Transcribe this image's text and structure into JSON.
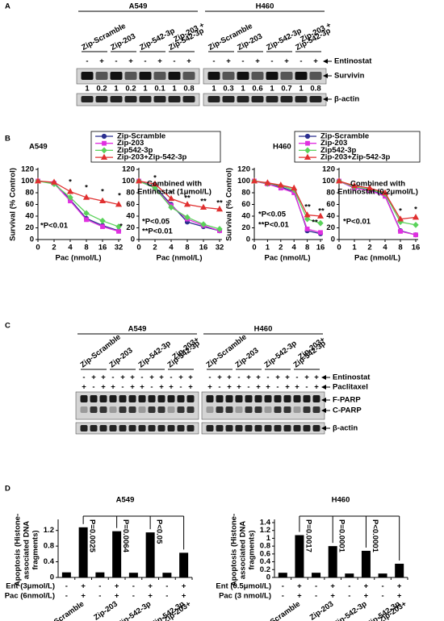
{
  "figure": {
    "panel_a": {
      "label": "A",
      "cell_lines": [
        "A549",
        "H460"
      ],
      "constructs": [
        [
          "Zip-Scramble"
        ],
        [
          "Zip-203"
        ],
        [
          "Zip-542-3p"
        ],
        [
          "Zip-203 +",
          "Zip-542-3p"
        ]
      ],
      "treatment": "Entinostat",
      "entinostat": [
        "-",
        "+"
      ],
      "proteins": [
        "Survivin",
        "β-actin"
      ],
      "survivin": [
        [
          1,
          0.2,
          1,
          0.2,
          1,
          0.1,
          1,
          0.8
        ],
        [
          1,
          0.3,
          1,
          0.6,
          1,
          0.7,
          1,
          0.8
        ]
      ]
    },
    "panel_c": {
      "label": "C",
      "cell_lines": [
        "A549",
        "H460"
      ],
      "constructs": [
        [
          "Zip-Scramble"
        ],
        [
          "Zip-203"
        ],
        [
          "Zip-542-3p"
        ],
        [
          "Zip-203+",
          "Zip-542-3p"
        ]
      ],
      "treatments": [
        "Entinostat",
        "Paclitaxel"
      ],
      "entinostat": [
        "-",
        "+",
        "+"
      ],
      "paclitaxel": [
        "+",
        "-",
        "+"
      ],
      "proteins": [
        "F-PARP",
        "C-PARP",
        "β-actin"
      ]
    }
  },
  "chart_data": [
    {
      "type": "line",
      "panel_label": "B",
      "title": "A549",
      "y_label": "Survival (% Control)",
      "x_label": "Pac (nmol/L)",
      "categories": [
        "0",
        "2",
        "4",
        "8",
        "16",
        "32"
      ],
      "ylim": [
        0,
        120
      ],
      "yticks": [
        0,
        20,
        40,
        60,
        80,
        100,
        120
      ],
      "series": [
        {
          "name": "Zip-Scramble",
          "color": "#2b2f8f",
          "values": [
            100,
            97,
            68,
            36,
            24,
            15
          ]
        },
        {
          "name": "Zip-203",
          "color": "#e030e0",
          "values": [
            100,
            96,
            66,
            34,
            22,
            14
          ]
        },
        {
          "name": "Zip542-3p",
          "color": "#5ad25a",
          "values": [
            100,
            95,
            72,
            45,
            32,
            22
          ]
        },
        {
          "name": "Zip-203+Zip-542-3p",
          "color": "#e03030",
          "values": [
            100,
            98,
            82,
            72,
            66,
            60
          ]
        }
      ],
      "annotations": [
        "*",
        "*",
        "*",
        "*",
        "*",
        "*P<0.01"
      ]
    },
    {
      "type": "line",
      "subtitle": [
        "Combined with",
        "Entinostat (1μmol/L)"
      ],
      "x_label": "Pac (nmol/L)",
      "categories": [
        "0",
        "2",
        "4",
        "8",
        "16",
        "32"
      ],
      "ylim": [
        0,
        120
      ],
      "yticks": [
        0,
        20,
        40,
        60,
        80,
        100,
        120
      ],
      "series": [
        {
          "color": "#2b2f8f",
          "values": [
            100,
            90,
            60,
            30,
            22,
            15
          ]
        },
        {
          "color": "#e030e0",
          "values": [
            100,
            88,
            58,
            35,
            24,
            15
          ]
        },
        {
          "color": "#5ad25a",
          "values": [
            100,
            88,
            55,
            38,
            26,
            18
          ]
        },
        {
          "color": "#e03030",
          "values": [
            100,
            95,
            70,
            60,
            55,
            52
          ]
        }
      ],
      "annotations": [
        "*",
        "*",
        "**",
        "**",
        "**",
        "*P<0.05",
        "**P<0.01"
      ]
    },
    {
      "type": "line",
      "title": "H460",
      "y_label": "Survival (% Control)",
      "x_label": "Pac (nmol/L)",
      "categories": [
        "0",
        "1",
        "2",
        "4",
        "8",
        "16"
      ],
      "ylim": [
        0,
        120
      ],
      "yticks": [
        0,
        20,
        40,
        60,
        80,
        100,
        120
      ],
      "series": [
        {
          "name": "Zip-Scramble",
          "color": "#2b2f8f",
          "values": [
            100,
            95,
            90,
            82,
            15,
            10
          ]
        },
        {
          "name": "Zip-203",
          "color": "#e030e0",
          "values": [
            100,
            95,
            88,
            80,
            18,
            12
          ]
        },
        {
          "name": "Zip542-3p",
          "color": "#5ad25a",
          "values": [
            100,
            96,
            92,
            85,
            35,
            28
          ]
        },
        {
          "name": "Zip-203+Zip-542-3p",
          "color": "#e03030",
          "values": [
            100,
            97,
            93,
            88,
            42,
            40
          ]
        }
      ],
      "annotations": [
        "**",
        "**",
        "**",
        "*P<0.05",
        "**P<0.01"
      ]
    },
    {
      "type": "line",
      "subtitle": [
        "Combined with",
        "Entinostat (0.2μmol/L)"
      ],
      "x_label": "Pac (nmol/L)",
      "categories": [
        "0",
        "1",
        "2",
        "4",
        "8",
        "16"
      ],
      "ylim": [
        0,
        120
      ],
      "yticks": [
        0,
        20,
        40,
        60,
        80,
        100,
        120
      ],
      "series": [
        {
          "color": "#2b2f8f",
          "values": [
            100,
            88,
            85,
            75,
            15,
            8
          ]
        },
        {
          "color": "#e030e0",
          "values": [
            100,
            88,
            84,
            74,
            14,
            8
          ]
        },
        {
          "color": "#5ad25a",
          "values": [
            100,
            90,
            86,
            78,
            30,
            25
          ]
        },
        {
          "color": "#e03030",
          "values": [
            100,
            92,
            88,
            80,
            35,
            38
          ]
        }
      ],
      "annotations": [
        "*",
        "*",
        "*P<0.01"
      ]
    },
    {
      "type": "bar",
      "panel_label": "D",
      "title": "A549",
      "y_label": [
        "Apoptosis (Histone-",
        "associated DNA",
        "fragments)"
      ],
      "values": [
        0.13,
        1.28,
        0.13,
        1.18,
        0.12,
        1.15,
        0.12,
        0.63
      ],
      "color": "#000000",
      "ylim": [
        0,
        1.4
      ],
      "yticks": [
        0,
        0.4,
        0.8,
        1.2
      ],
      "groups": [
        [
          "Zip-Scramble"
        ],
        [
          "Zip-203"
        ],
        [
          "Zip-542-3p"
        ],
        [
          "Zip-203+",
          "Zip-542-3p"
        ]
      ],
      "rows": [
        {
          "label": "Ent (3μmol/L)",
          "signs": [
            "-",
            "+",
            "-",
            "+",
            "-",
            "+",
            "-",
            "+"
          ]
        },
        {
          "label": "Pac (6nmol/L)",
          "signs": [
            "-",
            "+",
            "-",
            "+",
            "-",
            "+",
            "-",
            "+"
          ]
        }
      ],
      "p_values": [
        "P=0.0025",
        "P=0.0064",
        "P<0.05"
      ]
    },
    {
      "type": "bar",
      "title": "H460",
      "y_label": [
        "Apoptosis (Histone-",
        "associated DNA",
        "fragments)"
      ],
      "values": [
        0.12,
        1.08,
        0.12,
        0.8,
        0.1,
        0.68,
        0.1,
        0.35
      ],
      "color": "#000000",
      "ylim": [
        0,
        1.4
      ],
      "yticks": [
        0,
        0.2,
        0.4,
        0.6,
        0.8,
        1,
        1.2,
        1.4
      ],
      "groups": [
        [
          "Zip-Scramble"
        ],
        [
          "Zip-203"
        ],
        [
          "Zip-542-3p"
        ],
        [
          "Zip-203+",
          "Zip-542-3p"
        ]
      ],
      "rows": [
        {
          "label": "Ent (0.5μmol/L)",
          "signs": [
            "-",
            "+",
            "-",
            "+",
            "-",
            "+",
            "-",
            "+"
          ]
        },
        {
          "label": "Pac (3 nmol/L)",
          "signs": [
            "-",
            "+",
            "-",
            "+",
            "-",
            "+",
            "-",
            "+"
          ]
        }
      ],
      "p_values": [
        "P=0.0017",
        "P=0.0001",
        "P<0.0001"
      ]
    }
  ]
}
